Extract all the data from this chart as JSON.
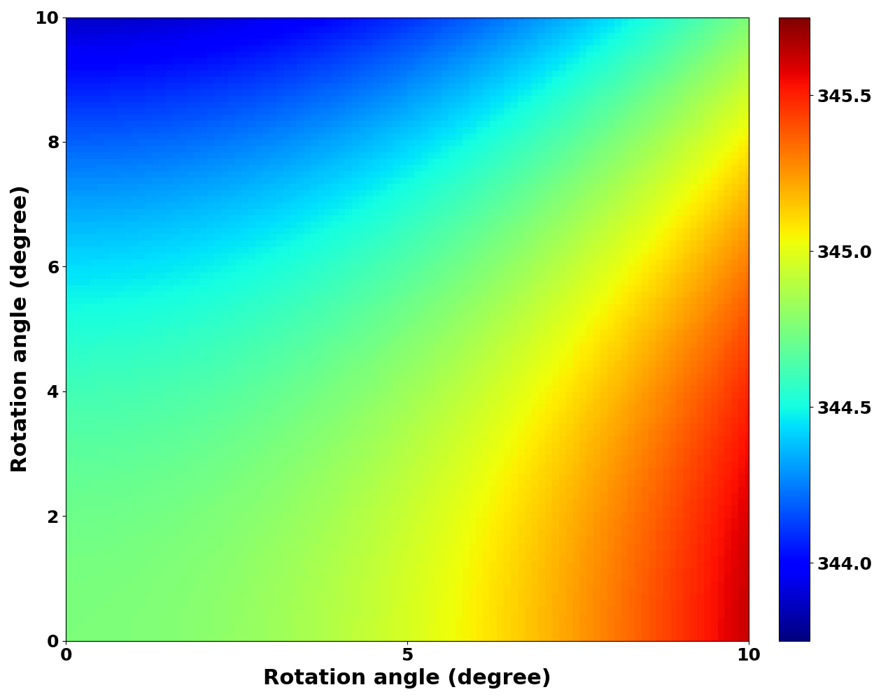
{
  "xlabel": "Rotation angle (degree)",
  "ylabel": "Rotation angle (degree)",
  "xlim": [
    0,
    10
  ],
  "ylim": [
    0,
    10
  ],
  "xticks": [
    0,
    5,
    10
  ],
  "yticks": [
    0,
    2,
    4,
    6,
    8,
    10
  ],
  "colorbar_ticks": [
    344,
    344.5,
    345,
    345.5
  ],
  "vmin": 343.75,
  "vmax": 345.75,
  "cmap": "jet",
  "xlabel_fontsize": 22,
  "ylabel_fontsize": 22,
  "tick_fontsize": 18,
  "colorbar_fontsize": 18,
  "grid_points": 100,
  "base": 344.75,
  "kx": 0.00875,
  "ky": -0.00875
}
